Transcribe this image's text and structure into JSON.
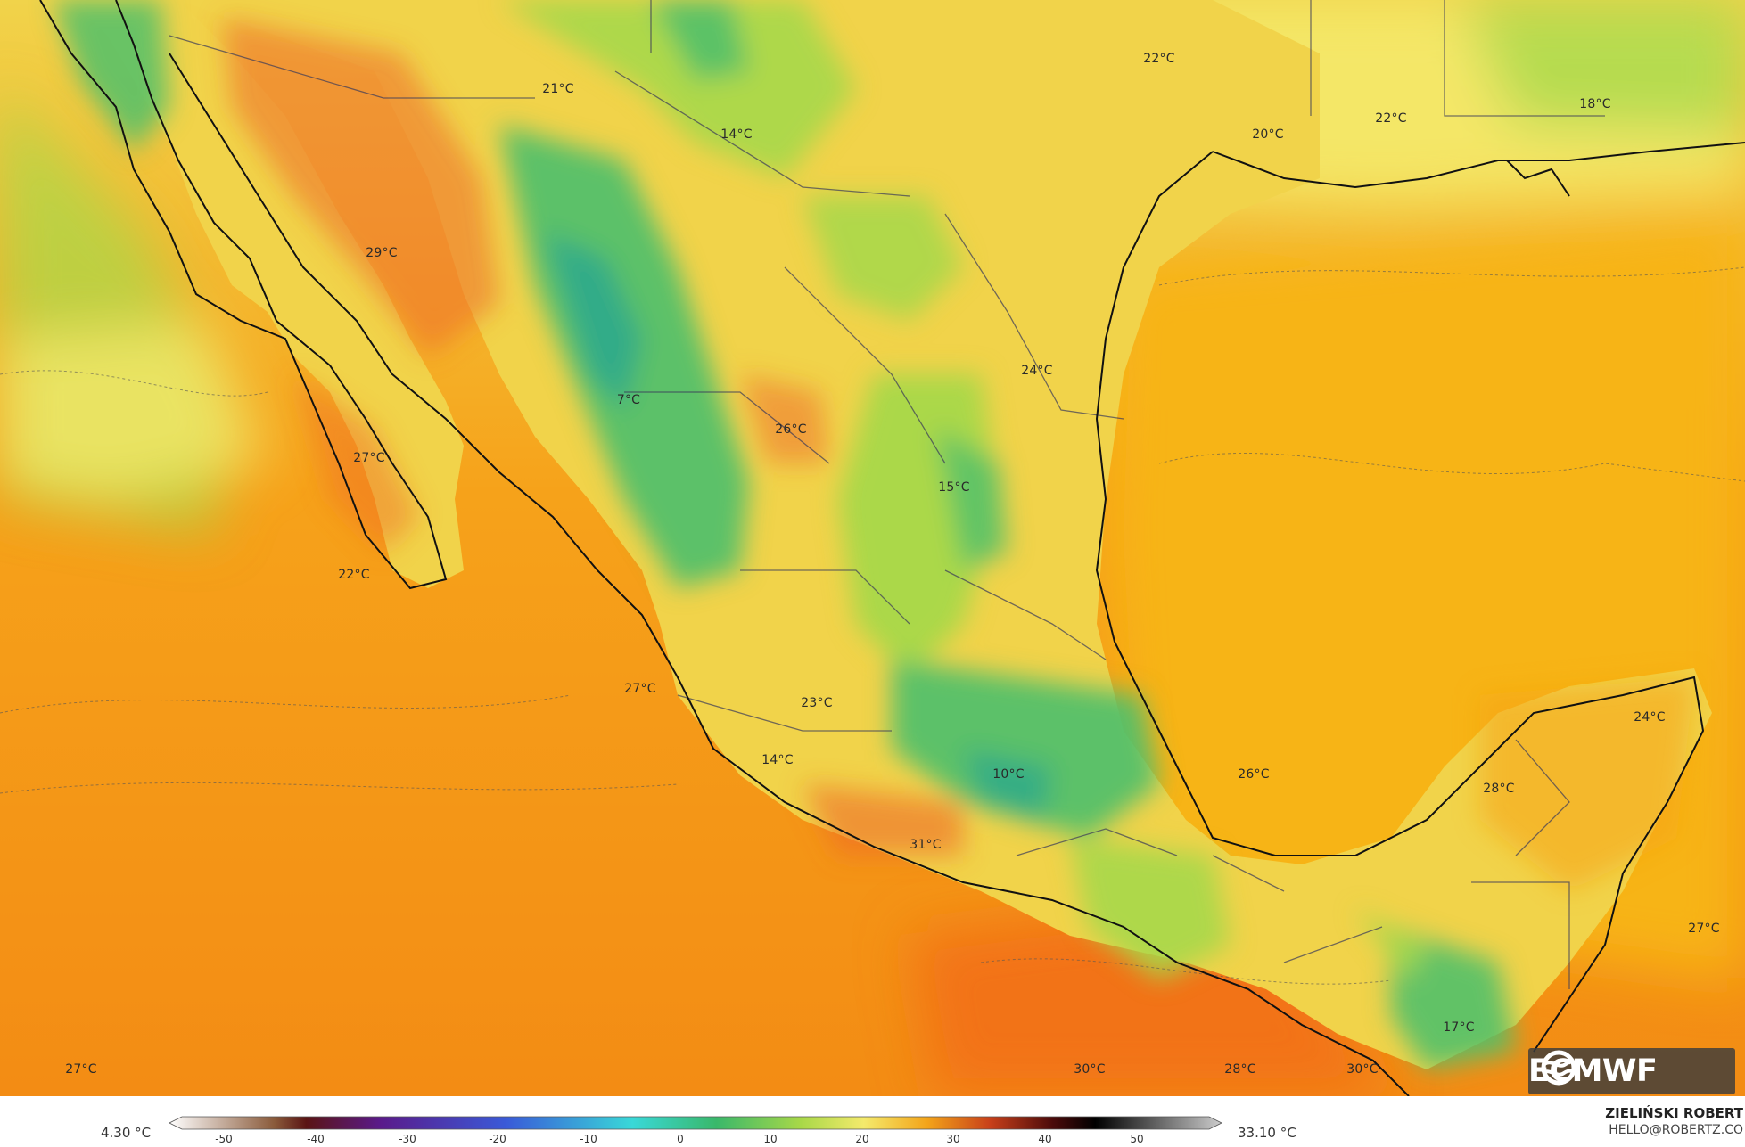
{
  "map": {
    "colors": {
      "ocean_pacific": "#f6a21a",
      "ocean_pacific_south": "#f38c14",
      "ocean_hot": "#f27014",
      "gulf": "#f7b414",
      "land_warm": "#f1d34a",
      "land_yellow": "#f4ea6c",
      "land_green": "#a6d84a",
      "land_cool": "#52c06a",
      "land_cold": "#2faa8c",
      "hot_spot": "#ef6a28",
      "coast": "#111111",
      "border": "#3a3a5a"
    },
    "labels": [
      {
        "text": "22°C"
      },
      {
        "text": "21°C"
      },
      {
        "text": "14°C"
      },
      {
        "text": "20°C"
      },
      {
        "text": "22°C"
      },
      {
        "text": "18°C"
      },
      {
        "text": "29°C"
      },
      {
        "text": "24°C"
      },
      {
        "text": "7°C"
      },
      {
        "text": "26°C"
      },
      {
        "text": "27°C"
      },
      {
        "text": "15°C"
      },
      {
        "text": "22°C"
      },
      {
        "text": "27°C"
      },
      {
        "text": "23°C"
      },
      {
        "text": "24°C"
      },
      {
        "text": "14°C"
      },
      {
        "text": "10°C"
      },
      {
        "text": "26°C"
      },
      {
        "text": "28°C"
      },
      {
        "text": "31°C"
      },
      {
        "text": "27°C"
      },
      {
        "text": "17°C"
      },
      {
        "text": "27°C"
      },
      {
        "text": "30°C"
      },
      {
        "text": "28°C"
      },
      {
        "text": "30°C"
      }
    ]
  },
  "logo": {
    "text": "ECMWF",
    "icon": "ecmwf-logo-icon"
  },
  "colorbar": {
    "min_label": "4.30 °C",
    "max_label": "33.10 °C",
    "ticks": [
      "-50",
      "-40",
      "-30",
      "-20",
      "-10",
      "0",
      "10",
      "20",
      "30",
      "40",
      "50"
    ],
    "stops": [
      "#ffffff",
      "#5a2a14",
      "#5a1a8a",
      "#3a5ad8",
      "#3ad8d8",
      "#3ab86a",
      "#a8d848",
      "#f4ea6c",
      "#f3a41a",
      "#c8401a",
      "#4a0a0a",
      "#000000",
      "#cccccc"
    ]
  },
  "credits": {
    "author": "ZIELIŃSKI ROBERT",
    "email": "HELLO@ROBERTZ.CO"
  }
}
